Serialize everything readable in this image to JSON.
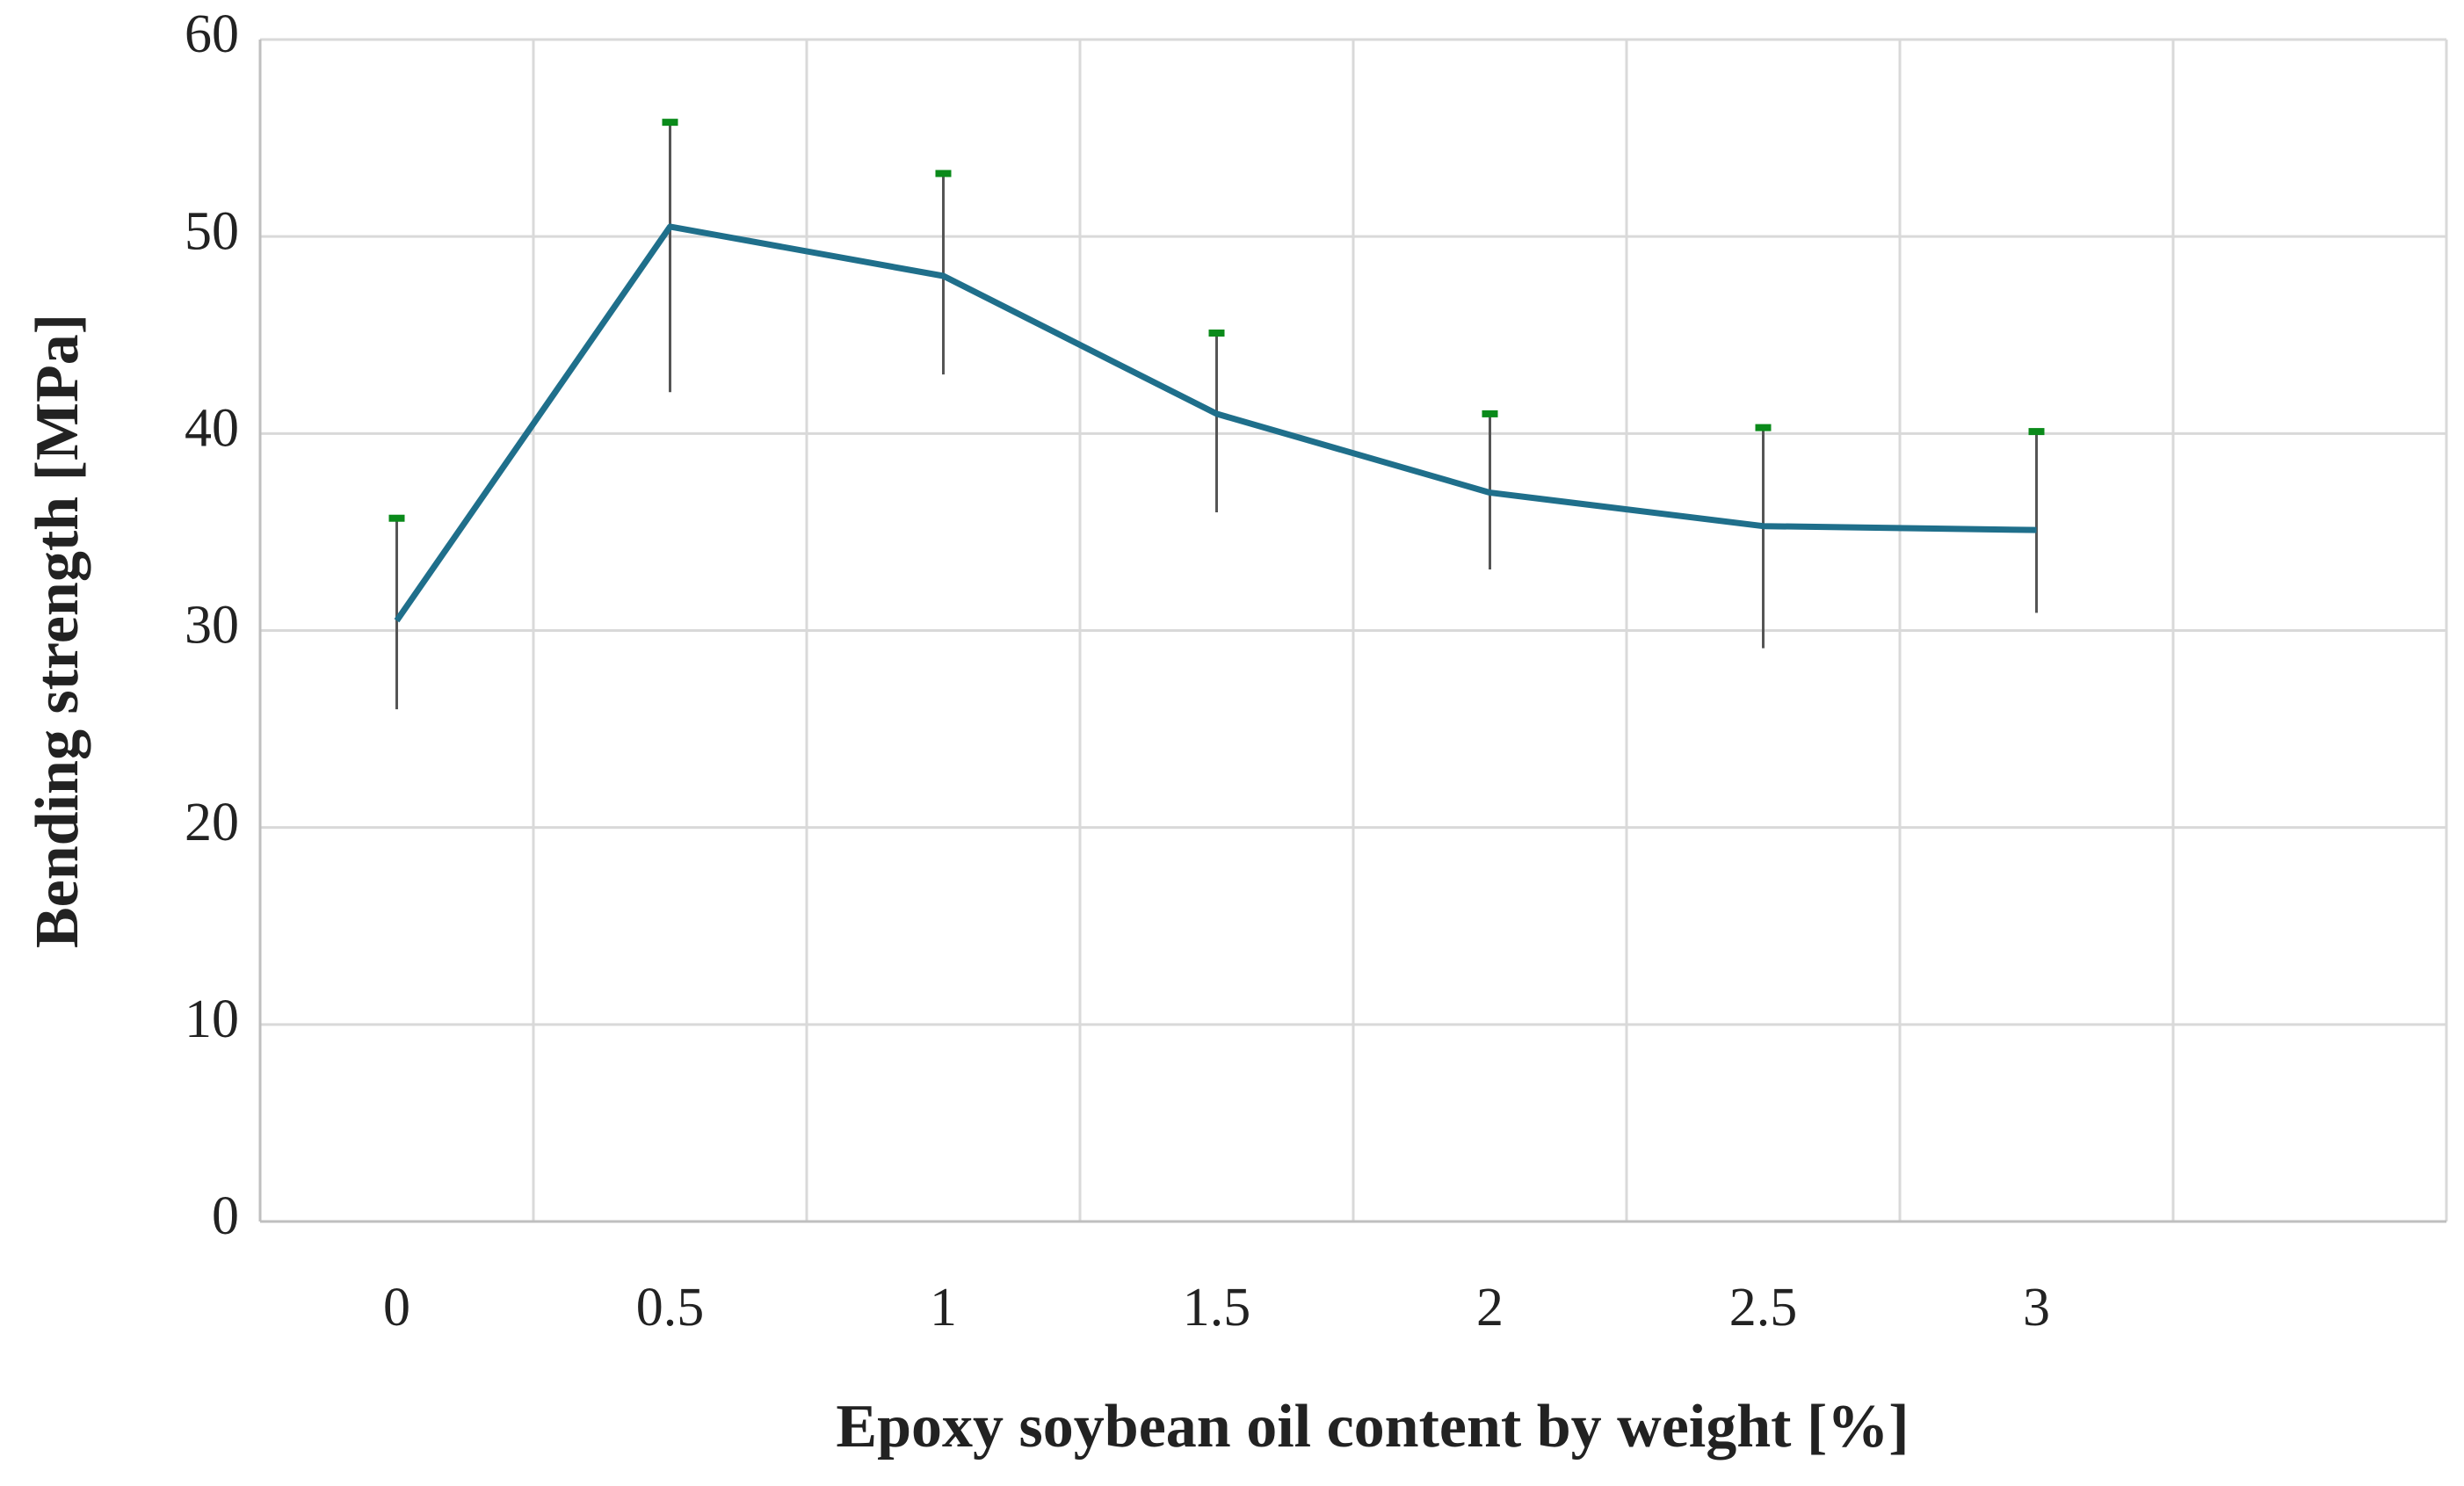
{
  "chart_data": {
    "type": "line",
    "x_label": "Epoxy soybean oil content by weight [%]",
    "y_label": "Bending strength [MPa]",
    "categories": [
      "0",
      "0.5",
      "1",
      "1.5",
      "2",
      "2.5",
      "3",
      null
    ],
    "series": [
      {
        "color": "#1f6f8b",
        "values": [
          30.5,
          50.5,
          48,
          41,
          37,
          35.3,
          35.1,
          null
        ],
        "error_plus": [
          5.2,
          5.3,
          5.2,
          4.1,
          4,
          5,
          5,
          null
        ],
        "error_minus": [
          4.5,
          8.4,
          5,
          5,
          3.9,
          6.2,
          4.2,
          null
        ]
      }
    ],
    "error_bar_color": "#555555",
    "error_cap_color": "#0a8a1a",
    "ylim": [
      0,
      60
    ],
    "yticks": [
      0,
      10,
      20,
      30,
      40,
      50,
      60
    ],
    "grid": true
  }
}
